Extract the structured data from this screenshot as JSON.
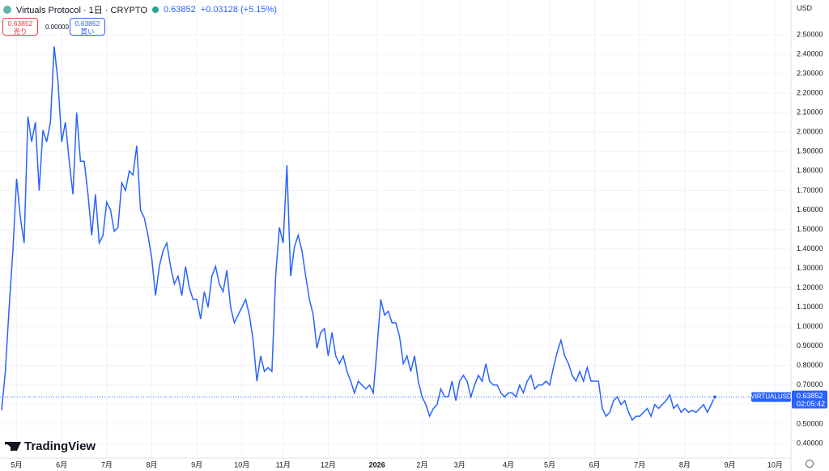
{
  "header": {
    "symbol": "Virtuals Protocol · 1日 · CRYPTO",
    "price": "0.63852",
    "change": "+0.03128 (+5.15%)",
    "sell_price": "0.63852",
    "sell_label": "売り",
    "spread": "0.00000",
    "buy_price": "0.63852",
    "buy_label": "買い",
    "currency": "USD",
    "logo": "TradingView",
    "countdown": "02:05:42"
  },
  "chart_data": {
    "type": "line",
    "categories": [
      null,
      null,
      null,
      null,
      "5月",
      null,
      null,
      null,
      null,
      null,
      null,
      null,
      null,
      null,
      null,
      null,
      "6月",
      null,
      null,
      null,
      null,
      null,
      null,
      null,
      null,
      null,
      null,
      null,
      "7月",
      null,
      null,
      null,
      null,
      null,
      null,
      null,
      null,
      null,
      null,
      null,
      "8月",
      null,
      null,
      null,
      null,
      null,
      null,
      null,
      null,
      null,
      null,
      null,
      "9月",
      null,
      null,
      null,
      null,
      null,
      null,
      null,
      null,
      null,
      null,
      null,
      "10月",
      null,
      null,
      null,
      null,
      null,
      null,
      null,
      null,
      null,
      null,
      "11月",
      null,
      null,
      null,
      null,
      null,
      null,
      null,
      null,
      null,
      null,
      null,
      "12月",
      null,
      null,
      null,
      null,
      null,
      null,
      null,
      null,
      null,
      null,
      null,
      null,
      "2026",
      null,
      null,
      null,
      null,
      null,
      null,
      null,
      null,
      null,
      null,
      null,
      "2月",
      null,
      null,
      null,
      null,
      null,
      null,
      null,
      null,
      null,
      "3月",
      null,
      null,
      null,
      null,
      null,
      null,
      null,
      null,
      null,
      null,
      null,
      null,
      "4月",
      null,
      null,
      null,
      null,
      null,
      null,
      null,
      null,
      null,
      null,
      "5月",
      null,
      null,
      null,
      null,
      null,
      null,
      null,
      null,
      null,
      null,
      null,
      "6月",
      null,
      null,
      null,
      null,
      null,
      null,
      null,
      null,
      null,
      null,
      null,
      "7月",
      null,
      null,
      null,
      null,
      null,
      null,
      null,
      null,
      null,
      null,
      null,
      "8月",
      null,
      null,
      null,
      null,
      null,
      null,
      null,
      null,
      null,
      null,
      null,
      "9月",
      null,
      null,
      null,
      null,
      null,
      null,
      null,
      null,
      null,
      null,
      null,
      "10月",
      null,
      null,
      null,
      null
    ],
    "series": [
      {
        "name": "VIRTUALUSD",
        "color": "#2962ff",
        "values": [
          0.57,
          0.77,
          1.1,
          1.39,
          1.76,
          1.56,
          1.43,
          2.08,
          1.95,
          2.05,
          1.7,
          2.01,
          1.95,
          2.05,
          2.44,
          2.26,
          1.95,
          2.05,
          1.85,
          1.68,
          2.1,
          1.85,
          1.85,
          1.68,
          1.47,
          1.68,
          1.43,
          1.47,
          1.64,
          1.6,
          1.49,
          1.51,
          1.74,
          1.7,
          1.8,
          1.78,
          1.93,
          1.6,
          1.56,
          1.47,
          1.35,
          1.16,
          1.31,
          1.39,
          1.43,
          1.31,
          1.22,
          1.26,
          1.16,
          1.31,
          1.2,
          1.14,
          1.14,
          1.04,
          1.18,
          1.1,
          1.26,
          1.31,
          1.22,
          1.18,
          1.29,
          1.1,
          1.02,
          1.06,
          1.1,
          1.14,
          1.06,
          0.93,
          0.72,
          0.85,
          0.77,
          0.79,
          0.77,
          1.26,
          1.51,
          1.43,
          1.83,
          1.26,
          1.41,
          1.47,
          1.39,
          1.26,
          1.14,
          1.06,
          0.89,
          0.97,
          0.99,
          0.85,
          0.97,
          0.85,
          0.81,
          0.85,
          0.77,
          0.72,
          0.66,
          0.72,
          0.7,
          0.68,
          0.7,
          0.66,
          0.89,
          1.14,
          1.06,
          1.08,
          1.02,
          1.02,
          0.95,
          0.81,
          0.85,
          0.77,
          0.85,
          0.72,
          0.64,
          0.6,
          0.54,
          0.58,
          0.6,
          0.68,
          0.64,
          0.64,
          0.72,
          0.62,
          0.72,
          0.75,
          0.72,
          0.64,
          0.7,
          0.75,
          0.72,
          0.81,
          0.72,
          0.7,
          0.7,
          0.66,
          0.64,
          0.66,
          0.66,
          0.64,
          0.7,
          0.66,
          0.72,
          0.75,
          0.68,
          0.7,
          0.7,
          0.72,
          0.7,
          0.79,
          0.87,
          0.93,
          0.85,
          0.81,
          0.75,
          0.72,
          0.77,
          0.72,
          0.79,
          0.72,
          0.72,
          0.72,
          0.58,
          0.54,
          0.56,
          0.62,
          0.64,
          0.6,
          0.62,
          0.56,
          0.52,
          0.54,
          0.54,
          0.56,
          0.58,
          0.54,
          0.6,
          0.58,
          0.6,
          0.62,
          0.65,
          0.58,
          0.6,
          0.56,
          0.58,
          0.56,
          0.57,
          0.56,
          0.58,
          0.6,
          0.56,
          0.6,
          0.63852,
          null,
          null,
          null,
          null,
          null,
          null,
          null,
          null,
          null,
          null,
          null,
          null,
          null,
          null,
          null,
          null,
          null,
          null,
          null,
          null
        ]
      }
    ],
    "ylim": [
      0.325,
      2.679
    ],
    "yticks": [
      {
        "value": 0.4,
        "label": "0.40000"
      },
      {
        "value": 0.5,
        "label": "0.50000"
      },
      {
        "value": 0.6,
        "label": "0.60000"
      },
      {
        "value": 0.7,
        "label": "0.70000"
      },
      {
        "value": 0.8,
        "label": "0.80000"
      },
      {
        "value": 0.9,
        "label": "0.90000"
      },
      {
        "value": 1.0,
        "label": "1.00000"
      },
      {
        "value": 1.1,
        "label": "1.10000"
      },
      {
        "value": 1.2,
        "label": "1.20000"
      },
      {
        "value": 1.3,
        "label": "1.30000"
      },
      {
        "value": 1.4,
        "label": "1.40000"
      },
      {
        "value": 1.5,
        "label": "1.50000"
      },
      {
        "value": 1.6,
        "label": "1.60000"
      },
      {
        "value": 1.7,
        "label": "1.70000"
      },
      {
        "value": 1.8,
        "label": "1.80000"
      },
      {
        "value": 1.9,
        "label": "1.90000"
      },
      {
        "value": 2.0,
        "label": "2.00000"
      },
      {
        "value": 2.1,
        "label": "2.10000"
      },
      {
        "value": 2.2,
        "label": "2.20000"
      },
      {
        "value": 2.3,
        "label": "2.30000"
      },
      {
        "value": 2.4,
        "label": "2.40000"
      },
      {
        "value": 2.5,
        "label": "2.50000"
      }
    ],
    "grid": true
  }
}
